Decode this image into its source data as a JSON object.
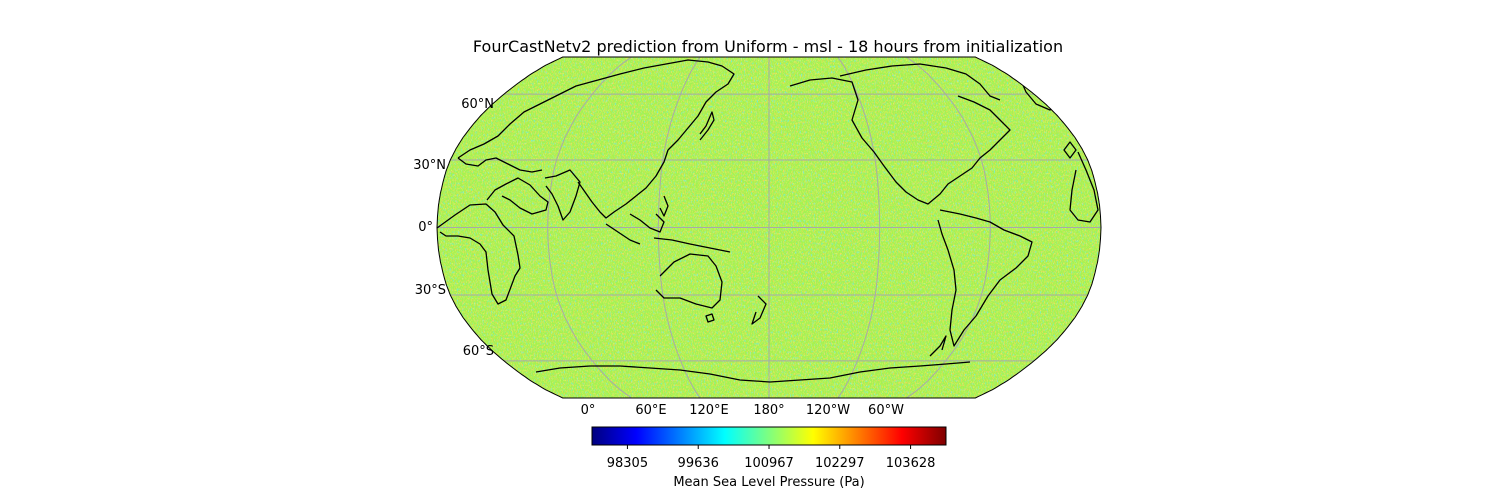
{
  "title": "FourCastNetv2 prediction from Uniform - msl - 18 hours from initialization",
  "map": {
    "projection": "Robinson",
    "central_longitude": 180,
    "field": "msl",
    "appearance": "noisy pressure field, mostly green-yellow with cyan and orange speckles",
    "coastlines": true,
    "gridlines": true,
    "gridline_color": "#a9a9a9",
    "lat_labels": [
      "60°N",
      "30°N",
      "0°",
      "30°S",
      "60°S"
    ],
    "lon_labels": [
      "0°",
      "60°E",
      "120°E",
      "180°",
      "120°W",
      "60°W"
    ]
  },
  "colorbar": {
    "colormap": "jet",
    "min": 97639,
    "max": 104294,
    "ticks": [
      "98305",
      "99636",
      "100967",
      "102297",
      "103628"
    ],
    "label": "Mean Sea Level Pressure (Pa)"
  }
}
